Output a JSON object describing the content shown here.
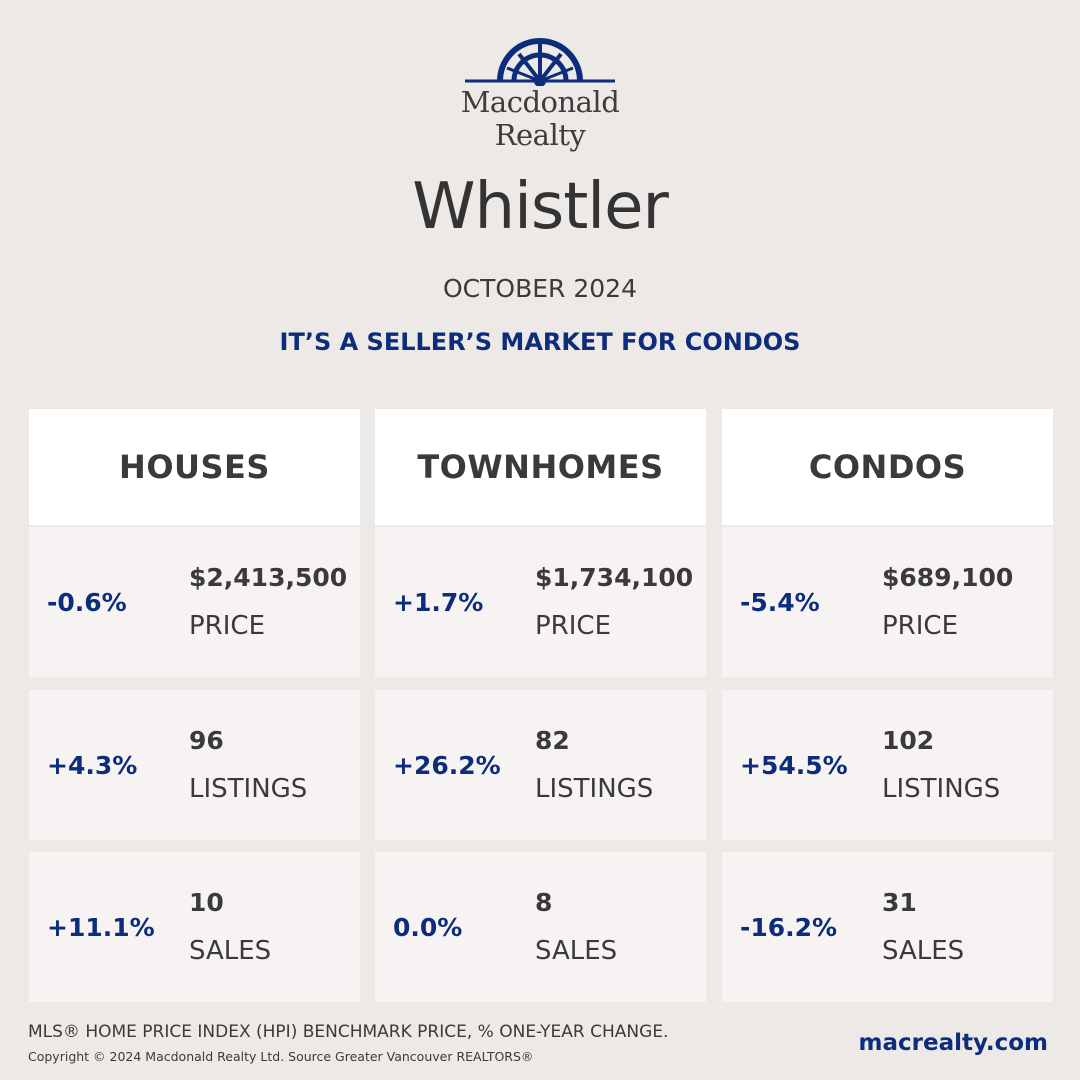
{
  "brand": {
    "line1": "Macdonald",
    "line2": "Realty",
    "color": "#0c2c7c"
  },
  "city": "Whistler",
  "month": "OCTOBER 2024",
  "headline": "IT’S A SELLER’S MARKET FOR CONDOS",
  "columns": [
    {
      "title": "HOUSES",
      "rows": [
        {
          "change": "-0.6%",
          "value": "$2,413,500",
          "label": "PRICE"
        },
        {
          "change": "+4.3%",
          "value": "96",
          "label": "LISTINGS"
        },
        {
          "change": "+11.1%",
          "value": "10",
          "label": "SALES"
        }
      ]
    },
    {
      "title": "TOWNHOMES",
      "rows": [
        {
          "change": "+1.7%",
          "value": "$1,734,100",
          "label": "PRICE"
        },
        {
          "change": "+26.2%",
          "value": "82",
          "label": "LISTINGS"
        },
        {
          "change": "0.0%",
          "value": "8",
          "label": "SALES"
        }
      ]
    },
    {
      "title": "CONDOS",
      "rows": [
        {
          "change": "-5.4%",
          "value": "$689,100",
          "label": "PRICE"
        },
        {
          "change": "+54.5%",
          "value": "102",
          "label": "LISTINGS"
        },
        {
          "change": "-16.2%",
          "value": "31",
          "label": "SALES"
        }
      ]
    }
  ],
  "footnote": "MLS® HOME PRICE INDEX (HPI) BENCHMARK PRICE, % ONE-YEAR CHANGE.",
  "copyright": "Copyright © 2024 Macdonald Realty Ltd. Source Greater Vancouver REALTORS®",
  "website": "macrealty.com"
}
